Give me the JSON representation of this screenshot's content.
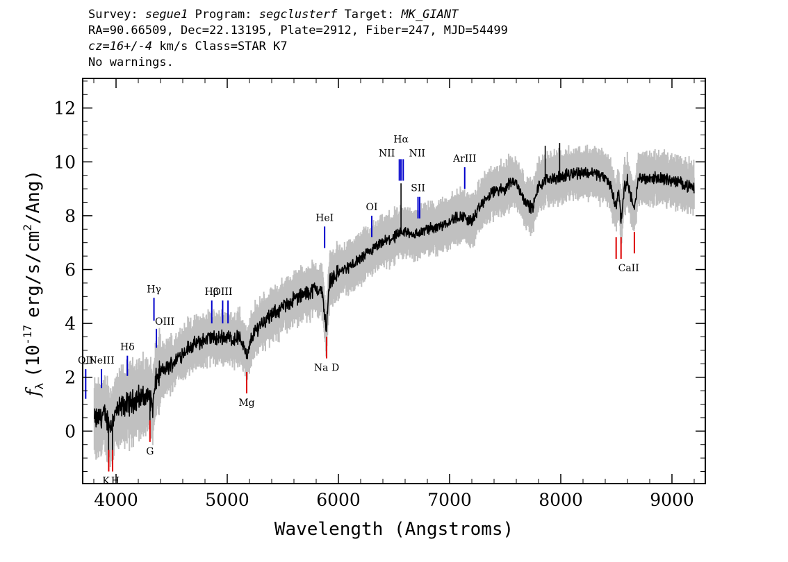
{
  "header": {
    "survey_label": "Survey:",
    "survey": "segue1",
    "program_label": "Program:",
    "program": "segclusterf",
    "target_label": "Target:",
    "target": "MK_GIANT",
    "line2": "RA=90.66509, Dec=22.13195, Plate=2912, Fiber=247, MJD=54499",
    "cz": "cz=16+/-4",
    "cz_rest": " km/s Class=STAR K7",
    "line4": "No warnings."
  },
  "chart_data": {
    "type": "line",
    "xlabel": "Wavelength (Angstroms)",
    "ylabel_prefix": "f",
    "ylabel_sub": "λ",
    "ylabel_rest": "(10",
    "ylabel_exp": "-17",
    "ylabel_unit": "erg/s/cm",
    "ylabel_sq": "2",
    "ylabel_end": "/Ang)",
    "xlim": [
      3700,
      9300
    ],
    "ylim": [
      -1.95,
      13.1
    ],
    "x_ticks": [
      4000,
      5000,
      6000,
      7000,
      8000,
      9000
    ],
    "x_tick_labels": [
      "4000",
      "5000",
      "6000",
      "7000",
      "8000",
      "9000"
    ],
    "y_ticks": [
      0,
      2,
      4,
      6,
      8,
      10,
      12
    ],
    "y_tick_labels": [
      "0",
      "2",
      "4",
      "6",
      "8",
      "10",
      "12"
    ],
    "colors": {
      "flux": "#000000",
      "error": "#c0c0c0",
      "emission": "#0000cc",
      "absorption": "#dd0000"
    },
    "spectrum_nodes": [
      [
        3800,
        0.4
      ],
      [
        3850,
        0.5
      ],
      [
        3900,
        0.6
      ],
      [
        3950,
        0.2
      ],
      [
        4000,
        0.7
      ],
      [
        4050,
        0.9
      ],
      [
        4100,
        1.0
      ],
      [
        4150,
        1.1
      ],
      [
        4200,
        1.3
      ],
      [
        4250,
        1.2
      ],
      [
        4300,
        1.3
      ],
      [
        4330,
        0.9
      ],
      [
        4360,
        1.9
      ],
      [
        4400,
        2.2
      ],
      [
        4450,
        2.3
      ],
      [
        4500,
        2.5
      ],
      [
        4550,
        2.7
      ],
      [
        4600,
        2.9
      ],
      [
        4650,
        3.1
      ],
      [
        4700,
        3.2
      ],
      [
        4750,
        3.3
      ],
      [
        4800,
        3.4
      ],
      [
        4850,
        3.5
      ],
      [
        4900,
        3.4
      ],
      [
        4950,
        3.5
      ],
      [
        5000,
        3.5
      ],
      [
        5050,
        3.4
      ],
      [
        5100,
        3.5
      ],
      [
        5150,
        3.2
      ],
      [
        5180,
        2.7
      ],
      [
        5220,
        3.5
      ],
      [
        5300,
        4.0
      ],
      [
        5400,
        4.3
      ],
      [
        5500,
        4.6
      ],
      [
        5600,
        4.9
      ],
      [
        5700,
        5.1
      ],
      [
        5800,
        5.3
      ],
      [
        5850,
        5.2
      ],
      [
        5893,
        3.8
      ],
      [
        5920,
        5.6
      ],
      [
        6000,
        5.9
      ],
      [
        6100,
        6.1
      ],
      [
        6200,
        6.4
      ],
      [
        6300,
        6.7
      ],
      [
        6400,
        7.0
      ],
      [
        6500,
        7.2
      ],
      [
        6550,
        7.3
      ],
      [
        6600,
        7.4
      ],
      [
        6700,
        7.3
      ],
      [
        6800,
        7.5
      ],
      [
        6900,
        7.6
      ],
      [
        7000,
        7.8
      ],
      [
        7100,
        8.0
      ],
      [
        7200,
        7.8
      ],
      [
        7300,
        8.5
      ],
      [
        7400,
        8.9
      ],
      [
        7500,
        9.0
      ],
      [
        7550,
        9.3
      ],
      [
        7600,
        9.2
      ],
      [
        7700,
        8.4
      ],
      [
        7750,
        8.3
      ],
      [
        7800,
        9.1
      ],
      [
        7900,
        9.4
      ],
      [
        8000,
        9.4
      ],
      [
        8100,
        9.6
      ],
      [
        8200,
        9.6
      ],
      [
        8300,
        9.6
      ],
      [
        8400,
        9.4
      ],
      [
        8450,
        9.1
      ],
      [
        8498,
        8.3
      ],
      [
        8520,
        9.0
      ],
      [
        8542,
        7.8
      ],
      [
        8570,
        9.0
      ],
      [
        8600,
        9.3
      ],
      [
        8662,
        8.2
      ],
      [
        8700,
        9.4
      ],
      [
        8800,
        9.4
      ],
      [
        8900,
        9.4
      ],
      [
        9000,
        9.3
      ],
      [
        9100,
        9.2
      ],
      [
        9200,
        9.0
      ]
    ],
    "spikes": [
      [
        3933,
        -1.2
      ],
      [
        3968,
        -0.9
      ],
      [
        4305,
        0.4
      ],
      [
        5893,
        3.7
      ],
      [
        6563,
        9.2
      ],
      [
        7860,
        10.6
      ],
      [
        7990,
        10.7
      ],
      [
        8542,
        7.7
      ]
    ],
    "emission_lines": [
      {
        "label": "OII",
        "x": 3727,
        "y1": 1.2,
        "y2": 2.3
      },
      {
        "label": "NeIII",
        "x": 3869,
        "y1": 1.6,
        "y2": 2.3
      },
      {
        "label": "Hδ",
        "x": 4102,
        "y1": 2.05,
        "y2": 2.8
      },
      {
        "label": "Hγ",
        "x": 4341,
        "y1": 4.1,
        "y2": 4.95
      },
      {
        "label": "OIII",
        "x": 4363,
        "y1": 3.1,
        "y2": 3.8
      },
      {
        "label": "Hβ",
        "x": 4861,
        "y1": 4.0,
        "y2": 4.85
      },
      {
        "label": "OIII",
        "x": 4959,
        "y1": 4.0,
        "y2": 4.85
      },
      {
        "label": "",
        "x": 5007,
        "y1": 4.0,
        "y2": 4.85
      },
      {
        "label": "HeI",
        "x": 5876,
        "y1": 6.8,
        "y2": 7.6
      },
      {
        "label": "OI",
        "x": 6300,
        "y1": 7.2,
        "y2": 8.0
      },
      {
        "label": "NII",
        "x": 6548,
        "y1": 9.3,
        "y2": 10.1
      },
      {
        "label": "Hα",
        "x": 6563,
        "y1": 9.3,
        "y2": 10.1
      },
      {
        "label": "NII",
        "x": 6583,
        "y1": 9.3,
        "y2": 10.1
      },
      {
        "label": "SII",
        "x": 6716,
        "y1": 7.9,
        "y2": 8.7
      },
      {
        "label": "",
        "x": 6731,
        "y1": 7.9,
        "y2": 8.7
      },
      {
        "label": "ArIII",
        "x": 7136,
        "y1": 9.0,
        "y2": 9.8
      }
    ],
    "absorption_lines": [
      {
        "label": "K",
        "x": 3934,
        "y1": -1.5,
        "y2": -0.7
      },
      {
        "label": "H",
        "x": 3969,
        "y1": -1.5,
        "y2": -0.7
      },
      {
        "label": "G",
        "x": 4305,
        "y1": -0.4,
        "y2": 0.4
      },
      {
        "label": "Mg",
        "x": 5175,
        "y1": 1.4,
        "y2": 2.2
      },
      {
        "label": "Na D",
        "x": 5894,
        "y1": 2.7,
        "y2": 3.5
      },
      {
        "label": "CaII",
        "x": 8498,
        "y1": 6.4,
        "y2": 7.2
      },
      {
        "label": "",
        "x": 8542,
        "y1": 6.4,
        "y2": 7.2
      },
      {
        "label": "",
        "x": 8662,
        "y1": 6.6,
        "y2": 7.4
      }
    ]
  }
}
